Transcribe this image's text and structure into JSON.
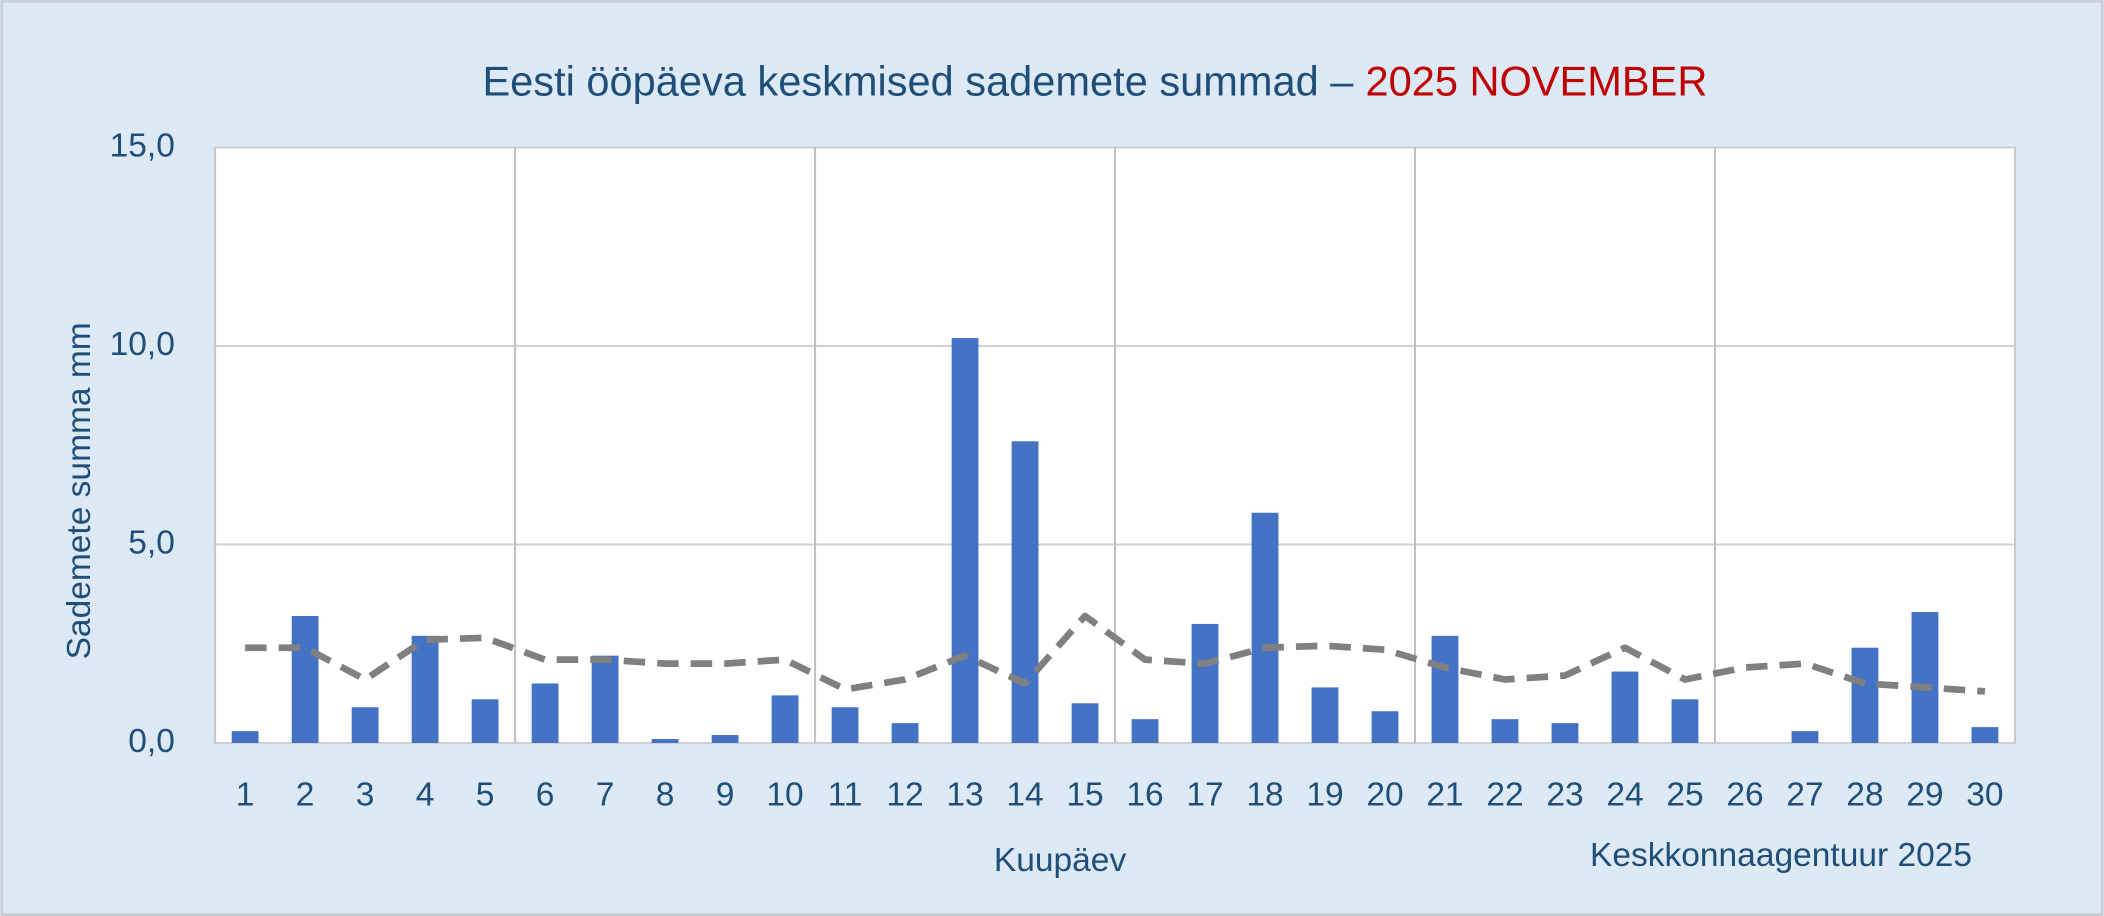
{
  "chart_data": {
    "type": "bar_line",
    "title": "Eesti ööpäeva keskmised sademete summad –",
    "title_highlight": "2025 NOVEMBER",
    "x_label": "Kuupäev",
    "y_label": "Sademete summa mm",
    "source": "Keskkonnaagentuur 2025",
    "categories": [
      "1",
      "2",
      "3",
      "4",
      "5",
      "6",
      "7",
      "8",
      "9",
      "10",
      "11",
      "12",
      "13",
      "14",
      "15",
      "16",
      "17",
      "18",
      "19",
      "20",
      "21",
      "22",
      "23",
      "24",
      "25",
      "26",
      "27",
      "28",
      "29",
      "30"
    ],
    "series": [
      {
        "type": "bar",
        "color": "#4472c4",
        "values": [
          0.3,
          3.2,
          0.9,
          2.7,
          1.1,
          1.5,
          2.2,
          0.1,
          0.2,
          1.2,
          0.9,
          0.5,
          10.2,
          7.6,
          1.0,
          0.6,
          3.0,
          5.8,
          1.4,
          0.8,
          2.7,
          0.6,
          0.5,
          1.8,
          1.1,
          0,
          0.3,
          2.4,
          3.3,
          0.4
        ]
      },
      {
        "type": "line",
        "color": "#808080",
        "dashed": true,
        "values": [
          2.4,
          2.4,
          1.6,
          2.6,
          2.65,
          2.1,
          2.1,
          2.0,
          2.0,
          2.1,
          1.35,
          1.6,
          2.2,
          1.5,
          3.2,
          2.1,
          2.0,
          2.4,
          2.45,
          2.35,
          1.9,
          1.6,
          1.7,
          2.4,
          1.6,
          1.9,
          2.0,
          1.5,
          1.4,
          1.3
        ]
      }
    ],
    "ylim": [
      0,
      15
    ],
    "yticks": [
      {
        "value": 0,
        "label": "0,0"
      },
      {
        "value": 5,
        "label": "5,0"
      },
      {
        "value": 10,
        "label": "10,0"
      },
      {
        "value": 15,
        "label": "15,0"
      }
    ],
    "grid": true
  }
}
